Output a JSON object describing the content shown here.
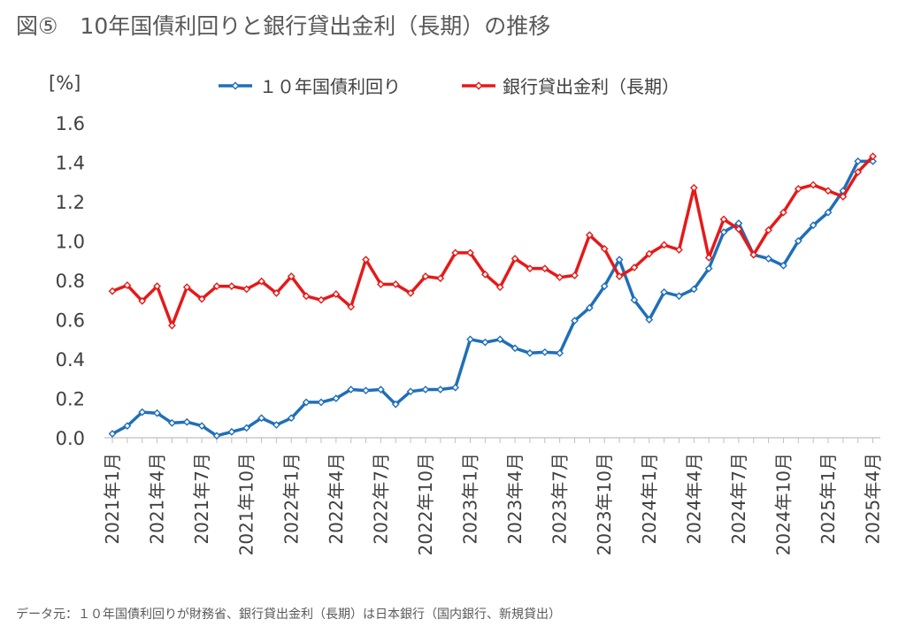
{
  "header": {
    "title": "図⑤　10年国債利回りと銀行貸出金利（長期）の推移"
  },
  "footer": {
    "note": "データ元：１０年国債利回りが財務省、銀行貸出金利（長期）は日本銀行（国内銀行、新規貸出）"
  },
  "chart_data": {
    "type": "line",
    "ylabel": "[%]",
    "ylim": [
      0.0,
      1.6
    ],
    "yticks": [
      "0.0",
      "0.2",
      "0.4",
      "0.6",
      "0.8",
      "1.0",
      "1.2",
      "1.4",
      "1.6"
    ],
    "grid": false,
    "legend_position": "top",
    "x_tick_labels": [
      "2021年1月",
      "2021年4月",
      "2021年7月",
      "2021年10月",
      "2022年1月",
      "2022年4月",
      "2022年7月",
      "2022年10月",
      "2023年1月",
      "2023年4月",
      "2023年7月",
      "2023年10月",
      "2024年1月",
      "2024年4月",
      "2024年7月",
      "2024年10月",
      "2025年1月",
      "2025年4月"
    ],
    "series": [
      {
        "name": "１０年国債利回り",
        "color": "#1f6fb8",
        "values": [
          0.02,
          0.06,
          0.13,
          0.125,
          0.075,
          0.08,
          0.06,
          0.01,
          0.03,
          0.05,
          0.1,
          0.065,
          0.1,
          0.18,
          0.18,
          0.2,
          0.245,
          0.24,
          0.245,
          0.17,
          0.235,
          0.245,
          0.245,
          0.255,
          0.5,
          0.485,
          0.5,
          0.455,
          0.43,
          0.435,
          0.43,
          0.595,
          0.66,
          0.77,
          0.905,
          0.7,
          0.6,
          0.74,
          0.72,
          0.755,
          0.86,
          1.045,
          1.09,
          0.93,
          0.91,
          0.875,
          1.0,
          1.08,
          1.145,
          1.255,
          1.405,
          1.405
        ]
      },
      {
        "name": "銀行貸出金利（長期）",
        "color": "#e61919",
        "values": [
          0.745,
          0.775,
          0.695,
          0.77,
          0.57,
          0.765,
          0.705,
          0.77,
          0.77,
          0.755,
          0.795,
          0.735,
          0.82,
          0.72,
          0.7,
          0.73,
          0.665,
          0.905,
          0.78,
          0.78,
          0.735,
          0.82,
          0.81,
          0.94,
          0.94,
          0.83,
          0.765,
          0.91,
          0.86,
          0.86,
          0.815,
          0.825,
          1.03,
          0.96,
          0.82,
          0.865,
          0.935,
          0.98,
          0.955,
          1.27,
          0.915,
          1.11,
          1.06,
          0.93,
          1.055,
          1.145,
          1.265,
          1.285,
          1.255,
          1.225,
          1.35,
          1.43
        ]
      }
    ]
  }
}
